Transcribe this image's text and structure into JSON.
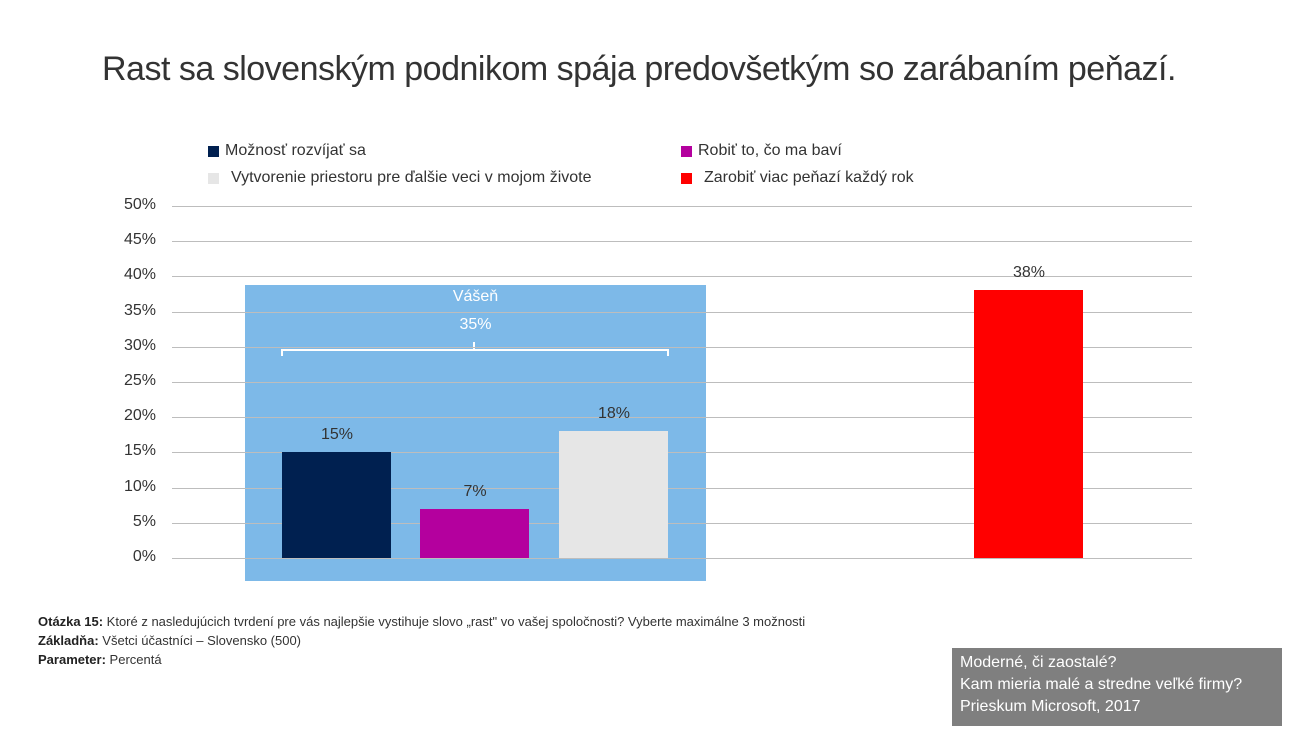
{
  "chart_data": {
    "type": "bar",
    "title": "Rast sa slovenským podnikom spája predovšetkým so zarábaním peňazí.",
    "categories": [
      "Možnosť rozvíjať sa",
      "Robiť to, čo ma baví",
      "Vytvorenie priestoru pre ďalšie veci v mojom živote",
      "Zarobiť viac peňazí každý rok"
    ],
    "values": [
      15,
      7,
      18,
      38
    ],
    "data_labels": [
      "15%",
      "7%",
      "18%",
      "38%"
    ],
    "colors": [
      "#002050",
      "#b4009e",
      "#e6e6e6",
      "#ff0000"
    ],
    "ylim": [
      0,
      50
    ],
    "yticks": [
      "0%",
      "5%",
      "10%",
      "15%",
      "20%",
      "25%",
      "30%",
      "35%",
      "40%",
      "45%",
      "50%"
    ],
    "legend_placement": "top",
    "grid": true,
    "annotation": {
      "label": "Vášeň",
      "value": "35%",
      "color": "#7db9e8"
    }
  },
  "footer": {
    "q_label": "Otázka 15:",
    "q_text": " Ktoré z nasledujúcich tvrdení pre vás najlepšie vystihuje slovo „rast\" vo vašej spoločnosti? Vyberte maximálne 3 možnosti",
    "base_label": "Základňa:",
    "base_text": " Všetci účastníci – Slovensko (500)",
    "param_label": "Parameter:",
    "param_text": " Percentá"
  },
  "source": [
    "Moderné, či zaostalé?",
    "Kam mieria malé a stredne veľké firmy?",
    "Prieskum Microsoft, 2017"
  ]
}
